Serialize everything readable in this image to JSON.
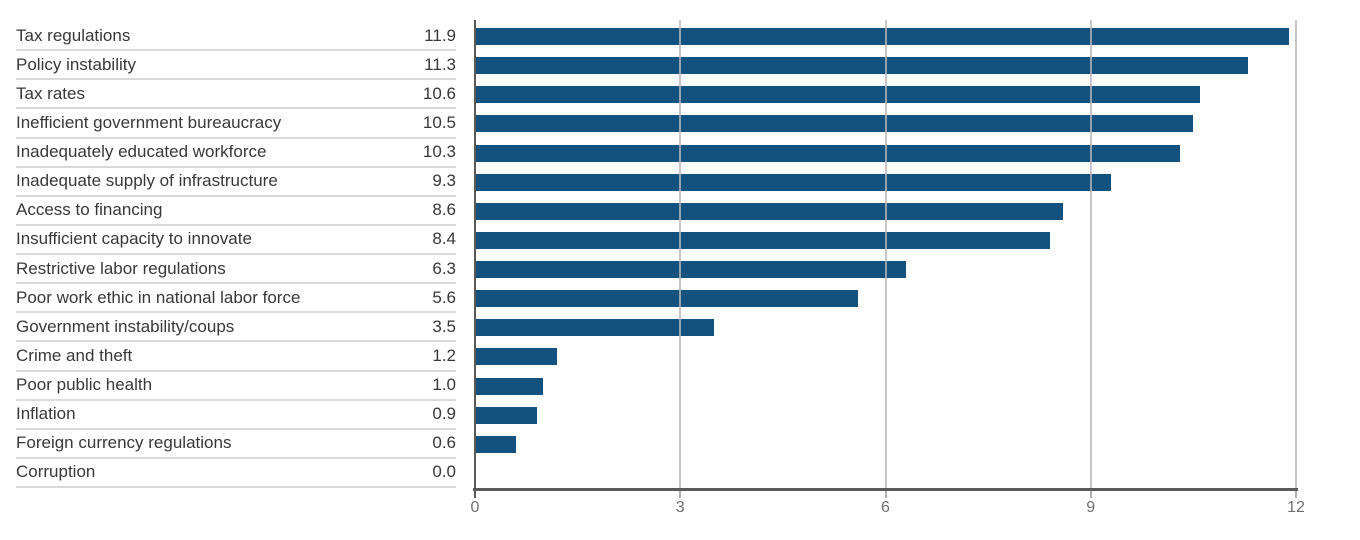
{
  "chart_data": {
    "type": "bar",
    "orientation": "horizontal",
    "title": "",
    "xlabel": "",
    "ylabel": "",
    "categories": [
      "Tax regulations",
      "Policy instability",
      "Tax rates",
      "Inefficient government bureaucracy",
      "Inadequately educated workforce",
      "Inadequate supply of infrastructure",
      "Access to financing",
      "Insufficient capacity to innovate",
      "Restrictive labor regulations",
      "Poor work ethic in national labor force",
      "Government instability/coups",
      "Crime and theft",
      "Poor public health",
      "Inflation",
      "Foreign currency regulations",
      "Corruption"
    ],
    "values": [
      11.9,
      11.3,
      10.6,
      10.5,
      10.3,
      9.3,
      8.6,
      8.4,
      6.3,
      5.6,
      3.5,
      1.2,
      1.0,
      0.9,
      0.6,
      0.0
    ],
    "value_labels": [
      "11.9",
      "11.3",
      "10.6",
      "10.5",
      "10.3",
      "9.3",
      "8.6",
      "8.4",
      "6.3",
      "5.6",
      "3.5",
      "1.2",
      "1.0",
      "0.9",
      "0.6",
      "0.0"
    ],
    "xlim": [
      0,
      12
    ],
    "x_ticks": [
      0,
      3,
      6,
      9,
      12
    ],
    "x_tick_labels": [
      "0",
      "3",
      "6",
      "9",
      "12"
    ],
    "grid": true,
    "legend": false,
    "colors": {
      "bar": "#13527e",
      "axis_line": "#595959",
      "gridline": "#c4c4c4",
      "label_text": "#383838",
      "tick_text": "#6f6f6f",
      "row_separator": "#d9d9d9",
      "minor_tick": "#b0b0b0"
    }
  }
}
